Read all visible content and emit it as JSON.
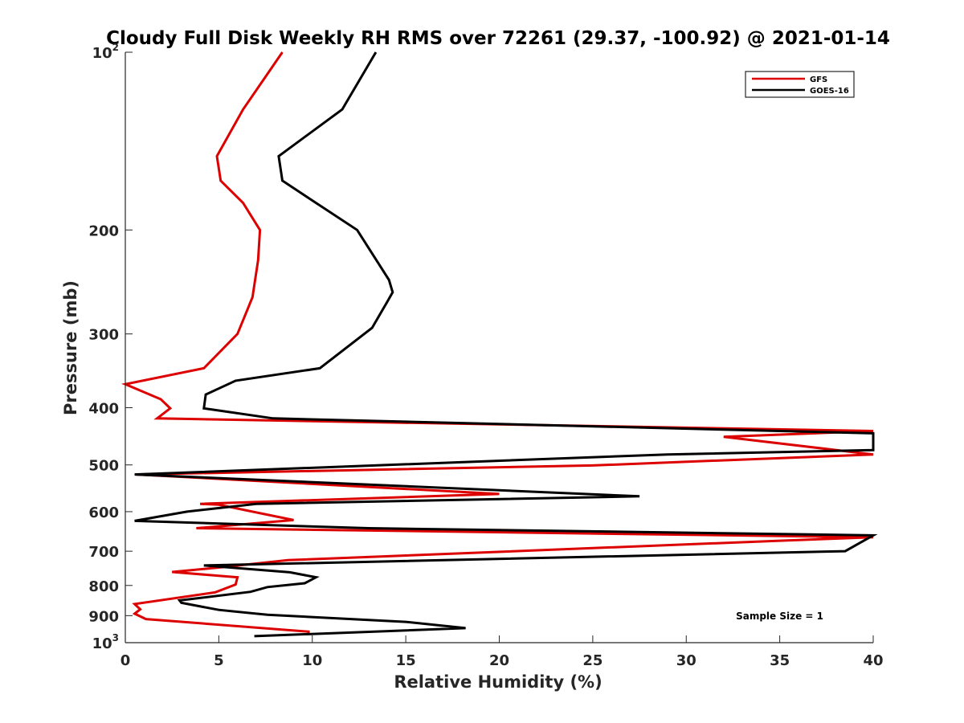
{
  "chart_data": {
    "type": "line",
    "title": "Cloudy Full Disk Weekly RH RMS over 72261 (29.37, -100.92) @ 2021-01-14",
    "xlabel": "Relative Humidity (%)",
    "ylabel": "Pressure (mb)",
    "xlim": [
      0,
      40
    ],
    "ylim": [
      100,
      1000
    ],
    "yscale": "log",
    "yreversed": true,
    "x_ticks": [
      0,
      5,
      10,
      15,
      20,
      25,
      30,
      35,
      40
    ],
    "x_tick_labels": [
      "0",
      "5",
      "10",
      "15",
      "20",
      "25",
      "30",
      "35",
      "40"
    ],
    "y_ticks": [
      100,
      200,
      300,
      400,
      500,
      600,
      700,
      800,
      900,
      1000
    ],
    "y_tick_labels": [
      {
        "base": "10",
        "exp": "2"
      },
      {
        "base": "200",
        "exp": ""
      },
      {
        "base": "300",
        "exp": ""
      },
      {
        "base": "400",
        "exp": ""
      },
      {
        "base": "500",
        "exp": ""
      },
      {
        "base": "600",
        "exp": ""
      },
      {
        "base": "700",
        "exp": ""
      },
      {
        "base": "800",
        "exp": ""
      },
      {
        "base": "900",
        "exp": ""
      },
      {
        "base": "10",
        "exp": "3"
      }
    ],
    "grid": false,
    "legend": "top-right",
    "annotation": "Sample Size = 1",
    "series": [
      {
        "name": "GFS",
        "color": "#dd0000",
        "points": [
          [
            8.4,
            100
          ],
          [
            6.3,
            125
          ],
          [
            4.9,
            150
          ],
          [
            5.1,
            165
          ],
          [
            6.3,
            180
          ],
          [
            7.2,
            200
          ],
          [
            7.1,
            225
          ],
          [
            6.8,
            260
          ],
          [
            6.0,
            300
          ],
          [
            4.2,
            343
          ],
          [
            0.0,
            365
          ],
          [
            1.9,
            387
          ],
          [
            2.4,
            401
          ],
          [
            1.7,
            417
          ],
          [
            40.0,
            438
          ],
          [
            32.0,
            448
          ],
          [
            40.0,
            480
          ],
          [
            25.0,
            501
          ],
          [
            0.6,
            519
          ],
          [
            20.0,
            560
          ],
          [
            4.0,
            582
          ],
          [
            5.0,
            584
          ],
          [
            9.0,
            620
          ],
          [
            3.8,
            640
          ],
          [
            40.0,
            663
          ],
          [
            35.0,
            672
          ],
          [
            8.7,
            725
          ],
          [
            5.2,
            745
          ],
          [
            2.5,
            759
          ],
          [
            6.0,
            775
          ],
          [
            5.9,
            797
          ],
          [
            4.8,
            822
          ],
          [
            0.5,
            860
          ],
          [
            0.8,
            878
          ],
          [
            0.5,
            893
          ],
          [
            1.1,
            912
          ],
          [
            9.8,
            958
          ],
          [
            9.8,
            970
          ]
        ]
      },
      {
        "name": "GOES-16",
        "color": "#000000",
        "points": [
          [
            13.4,
            100
          ],
          [
            11.6,
            125
          ],
          [
            8.2,
            150
          ],
          [
            8.4,
            165
          ],
          [
            10.2,
            180
          ],
          [
            12.4,
            200
          ],
          [
            14.1,
            243
          ],
          [
            14.3,
            255
          ],
          [
            14.0,
            265
          ],
          [
            13.2,
            293
          ],
          [
            10.4,
            343
          ],
          [
            5.9,
            360
          ],
          [
            4.3,
            380
          ],
          [
            4.2,
            401
          ],
          [
            7.9,
            417
          ],
          [
            40.0,
            442
          ],
          [
            40.0,
            472
          ],
          [
            29.0,
            480
          ],
          [
            0.5,
            519
          ],
          [
            27.5,
            565
          ],
          [
            7.0,
            582
          ],
          [
            3.3,
            600
          ],
          [
            0.5,
            622
          ],
          [
            13.0,
            640
          ],
          [
            40.0,
            658
          ],
          [
            38.5,
            700
          ],
          [
            4.2,
            740
          ],
          [
            8.8,
            760
          ],
          [
            10.2,
            775
          ],
          [
            9.6,
            793
          ],
          [
            7.6,
            805
          ],
          [
            6.7,
            820
          ],
          [
            2.9,
            848
          ],
          [
            3.0,
            856
          ],
          [
            5.0,
            880
          ],
          [
            7.6,
            897
          ],
          [
            15.0,
            922
          ],
          [
            18.2,
            945
          ],
          [
            6.9,
            975
          ]
        ]
      }
    ]
  }
}
